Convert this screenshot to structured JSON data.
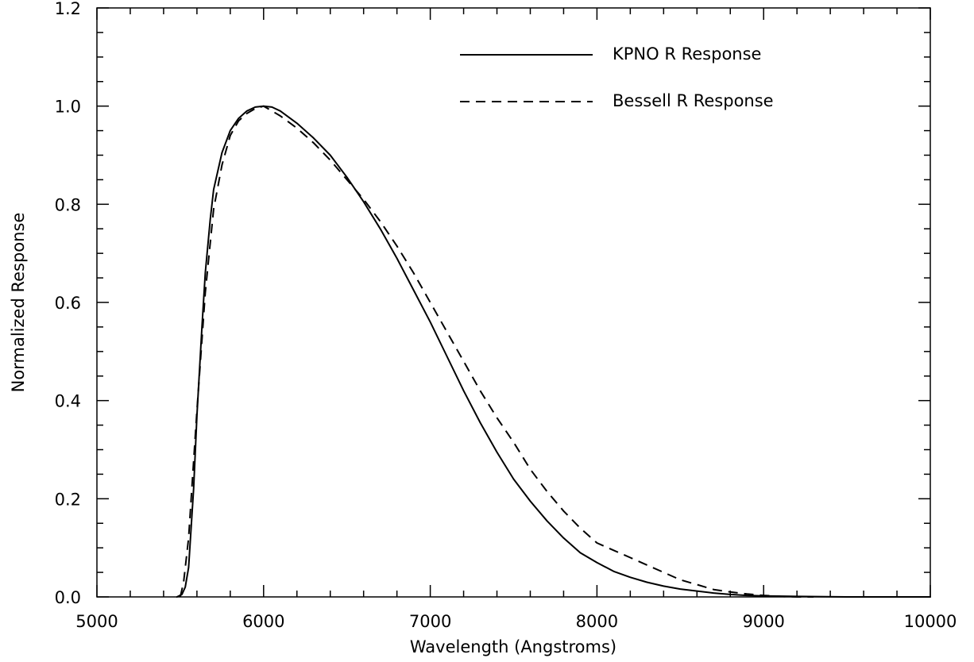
{
  "chart_data": {
    "type": "line",
    "title": "",
    "xlabel": "Wavelength (Angstroms)",
    "ylabel": "Normalized Response",
    "xlim": [
      5000,
      10000
    ],
    "ylim": [
      0.0,
      1.2
    ],
    "x_ticks": [
      "5000",
      "6000",
      "7000",
      "8000",
      "9000",
      "10000"
    ],
    "y_ticks": [
      "0.0",
      "0.2",
      "0.4",
      "0.6",
      "0.8",
      "1.0",
      "1.2"
    ],
    "grid": false,
    "legend_position": "top-right",
    "series": [
      {
        "name": "KPNO R Response",
        "style": "solid",
        "x": [
          5480,
          5510,
          5530,
          5550,
          5580,
          5600,
          5630,
          5650,
          5680,
          5700,
          5750,
          5800,
          5850,
          5900,
          5950,
          6000,
          6050,
          6100,
          6200,
          6300,
          6400,
          6500,
          6600,
          6700,
          6800,
          6900,
          7000,
          7100,
          7200,
          7300,
          7400,
          7500,
          7600,
          7700,
          7800,
          7900,
          8000,
          8100,
          8200,
          8300,
          8400,
          8500,
          8600,
          8700,
          8800,
          8900,
          9000,
          9200,
          9500,
          10000
        ],
        "values": [
          0.0,
          0.005,
          0.02,
          0.06,
          0.22,
          0.37,
          0.55,
          0.66,
          0.77,
          0.83,
          0.905,
          0.95,
          0.975,
          0.99,
          0.998,
          1.0,
          0.998,
          0.99,
          0.965,
          0.935,
          0.9,
          0.855,
          0.805,
          0.75,
          0.69,
          0.625,
          0.56,
          0.49,
          0.42,
          0.355,
          0.295,
          0.24,
          0.195,
          0.155,
          0.12,
          0.09,
          0.07,
          0.052,
          0.04,
          0.03,
          0.022,
          0.016,
          0.012,
          0.008,
          0.005,
          0.003,
          0.002,
          0.001,
          0.0,
          0.0
        ]
      },
      {
        "name": "Bessell R Response",
        "style": "dashed",
        "x": [
          5500,
          5520,
          5550,
          5600,
          5650,
          5700,
          5750,
          5800,
          5850,
          5900,
          5950,
          6000,
          6050,
          6100,
          6200,
          6300,
          6400,
          6500,
          6600,
          6700,
          6800,
          6900,
          7000,
          7100,
          7200,
          7300,
          7400,
          7500,
          7600,
          7700,
          7800,
          7900,
          8000,
          8100,
          8200,
          8300,
          8400,
          8500,
          8600,
          8700,
          8800,
          8900,
          9000,
          9100,
          9200,
          9300
        ],
        "values": [
          0.0,
          0.03,
          0.12,
          0.38,
          0.62,
          0.79,
          0.88,
          0.94,
          0.97,
          0.985,
          0.995,
          1.0,
          0.99,
          0.98,
          0.955,
          0.925,
          0.89,
          0.85,
          0.81,
          0.765,
          0.715,
          0.66,
          0.6,
          0.54,
          0.48,
          0.42,
          0.365,
          0.315,
          0.26,
          0.215,
          0.175,
          0.14,
          0.11,
          0.095,
          0.08,
          0.065,
          0.05,
          0.035,
          0.025,
          0.015,
          0.01,
          0.006,
          0.003,
          0.001,
          0.0,
          0.0
        ]
      }
    ]
  }
}
